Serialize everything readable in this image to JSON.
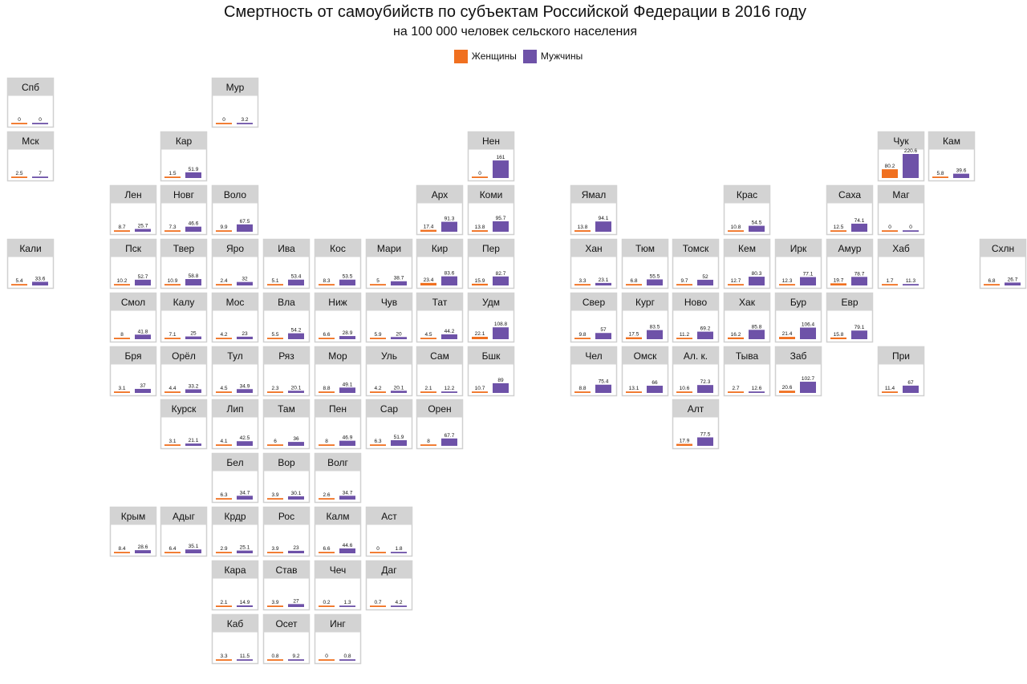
{
  "title": "Смертность от самоубийств по субъектам Российской Федерации в 2016 году",
  "subtitle": "на 100 000 человек сельского населения",
  "legend": [
    {
      "label": "Женщины",
      "color": "#f07020"
    },
    {
      "label": "Мужчины",
      "color": "#6e52a8"
    }
  ],
  "chart_data": {
    "type": "bar",
    "series": [
      {
        "name": "Женщины",
        "color": "#f07020"
      },
      {
        "name": "Мужчины",
        "color": "#6e52a8"
      }
    ],
    "ylim": [
      0,
      220.6
    ],
    "regions": [
      {
        "name": "Спб",
        "col": 0,
        "row": 0,
        "women": 0,
        "men": 0
      },
      {
        "name": "Мур",
        "col": 4,
        "row": 0,
        "women": 0,
        "men": 3.2
      },
      {
        "name": "Мск",
        "col": 0,
        "row": 1,
        "women": 2.5,
        "men": 7
      },
      {
        "name": "Кар",
        "col": 3,
        "row": 1,
        "women": 1.5,
        "men": 51.9
      },
      {
        "name": "Нен",
        "col": 9,
        "row": 1,
        "women": 0,
        "men": 161
      },
      {
        "name": "Чук",
        "col": 17,
        "row": 1,
        "women": 80.2,
        "men": 220.6
      },
      {
        "name": "Кам",
        "col": 18,
        "row": 1,
        "women": 5.8,
        "men": 39.6
      },
      {
        "name": "Лен",
        "col": 2,
        "row": 2,
        "women": 8.7,
        "men": 25.7
      },
      {
        "name": "Новг",
        "col": 3,
        "row": 2,
        "women": 7.3,
        "men": 46.6
      },
      {
        "name": "Воло",
        "col": 4,
        "row": 2,
        "women": 9.9,
        "men": 67.5
      },
      {
        "name": "Арх",
        "col": 8,
        "row": 2,
        "women": 17.4,
        "men": 91.3
      },
      {
        "name": "Коми",
        "col": 9,
        "row": 2,
        "women": 13.8,
        "men": 95.7
      },
      {
        "name": "Ямал",
        "col": 11,
        "row": 2,
        "women": 13.8,
        "men": 94.1
      },
      {
        "name": "Крас",
        "col": 14,
        "row": 2,
        "women": 10.8,
        "men": 54.5
      },
      {
        "name": "Саха",
        "col": 16,
        "row": 2,
        "women": 12.5,
        "men": 74.1
      },
      {
        "name": "Маг",
        "col": 17,
        "row": 2,
        "women": 0,
        "men": 0
      },
      {
        "name": "Кали",
        "col": 0,
        "row": 3,
        "women": 5.4,
        "men": 33.6
      },
      {
        "name": "Пск",
        "col": 2,
        "row": 3,
        "women": 10.2,
        "men": 52.7
      },
      {
        "name": "Твер",
        "col": 3,
        "row": 3,
        "women": 10.9,
        "men": 58.8
      },
      {
        "name": "Яро",
        "col": 4,
        "row": 3,
        "women": 2.4,
        "men": 32
      },
      {
        "name": "Ива",
        "col": 5,
        "row": 3,
        "women": 5.1,
        "men": 53.4
      },
      {
        "name": "Кос",
        "col": 6,
        "row": 3,
        "women": 8.3,
        "men": 53.5
      },
      {
        "name": "Мари",
        "col": 7,
        "row": 3,
        "women": 5,
        "men": 38.7
      },
      {
        "name": "Кир",
        "col": 8,
        "row": 3,
        "women": 23.4,
        "men": 83.6
      },
      {
        "name": "Пер",
        "col": 9,
        "row": 3,
        "women": 15.9,
        "men": 82.7
      },
      {
        "name": "Хан",
        "col": 11,
        "row": 3,
        "women": 3.3,
        "men": 23.1
      },
      {
        "name": "Тюм",
        "col": 12,
        "row": 3,
        "women": 6.8,
        "men": 55.5
      },
      {
        "name": "Томск",
        "col": 13,
        "row": 3,
        "women": 9.7,
        "men": 52
      },
      {
        "name": "Кем",
        "col": 14,
        "row": 3,
        "women": 12.7,
        "men": 80.3
      },
      {
        "name": "Ирк",
        "col": 15,
        "row": 3,
        "women": 12.3,
        "men": 77.1
      },
      {
        "name": "Амур",
        "col": 16,
        "row": 3,
        "women": 19.7,
        "men": 78.7
      },
      {
        "name": "Хаб",
        "col": 17,
        "row": 3,
        "women": 1.7,
        "men": 11.3
      },
      {
        "name": "Схлн",
        "col": 19,
        "row": 3,
        "women": 6.8,
        "men": 26.7
      },
      {
        "name": "Смол",
        "col": 2,
        "row": 4,
        "women": 8,
        "men": 41.8
      },
      {
        "name": "Калу",
        "col": 3,
        "row": 4,
        "women": 7.1,
        "men": 25
      },
      {
        "name": "Мос",
        "col": 4,
        "row": 4,
        "women": 4.2,
        "men": 23
      },
      {
        "name": "Вла",
        "col": 5,
        "row": 4,
        "women": 5.5,
        "men": 54.2
      },
      {
        "name": "Ниж",
        "col": 6,
        "row": 4,
        "women": 6.6,
        "men": 28.9
      },
      {
        "name": "Чув",
        "col": 7,
        "row": 4,
        "women": 5.9,
        "men": 20
      },
      {
        "name": "Тат",
        "col": 8,
        "row": 4,
        "women": 4.5,
        "men": 44.2
      },
      {
        "name": "Удм",
        "col": 9,
        "row": 4,
        "women": 22.1,
        "men": 108.8
      },
      {
        "name": "Свер",
        "col": 11,
        "row": 4,
        "women": 9.8,
        "men": 57
      },
      {
        "name": "Кург",
        "col": 12,
        "row": 4,
        "women": 17.5,
        "men": 83.5
      },
      {
        "name": "Ново",
        "col": 13,
        "row": 4,
        "women": 11.2,
        "men": 69.2
      },
      {
        "name": "Хак",
        "col": 14,
        "row": 4,
        "women": 16.2,
        "men": 85.8
      },
      {
        "name": "Бур",
        "col": 15,
        "row": 4,
        "women": 21.4,
        "men": 106.4
      },
      {
        "name": "Евр",
        "col": 16,
        "row": 4,
        "women": 15.8,
        "men": 79.1
      },
      {
        "name": "Бря",
        "col": 2,
        "row": 5,
        "women": 3.1,
        "men": 37
      },
      {
        "name": "Орёл",
        "col": 3,
        "row": 5,
        "women": 4.4,
        "men": 33.2
      },
      {
        "name": "Тул",
        "col": 4,
        "row": 5,
        "women": 4.5,
        "men": 34.9
      },
      {
        "name": "Ряз",
        "col": 5,
        "row": 5,
        "women": 2.3,
        "men": 20.1
      },
      {
        "name": "Мор",
        "col": 6,
        "row": 5,
        "women": 8.8,
        "men": 49.1
      },
      {
        "name": "Уль",
        "col": 7,
        "row": 5,
        "women": 4.2,
        "men": 20.1
      },
      {
        "name": "Сам",
        "col": 8,
        "row": 5,
        "women": 2.1,
        "men": 12.2
      },
      {
        "name": "Бшк",
        "col": 9,
        "row": 5,
        "women": 10.7,
        "men": 89
      },
      {
        "name": "Чел",
        "col": 11,
        "row": 5,
        "women": 8.8,
        "men": 75.4
      },
      {
        "name": "Омск",
        "col": 12,
        "row": 5,
        "women": 13.1,
        "men": 66
      },
      {
        "name": "Ал. к.",
        "col": 13,
        "row": 5,
        "women": 10.6,
        "men": 72.3
      },
      {
        "name": "Тыва",
        "col": 14,
        "row": 5,
        "women": 2.7,
        "men": 12.6
      },
      {
        "name": "Заб",
        "col": 15,
        "row": 5,
        "women": 20.6,
        "men": 102.7
      },
      {
        "name": "При",
        "col": 17,
        "row": 5,
        "women": 11.4,
        "men": 67
      },
      {
        "name": "Курск",
        "col": 3,
        "row": 6,
        "women": 3.1,
        "men": 21.1
      },
      {
        "name": "Лип",
        "col": 4,
        "row": 6,
        "women": 4.1,
        "men": 42.5
      },
      {
        "name": "Там",
        "col": 5,
        "row": 6,
        "women": 6,
        "men": 36
      },
      {
        "name": "Пен",
        "col": 6,
        "row": 6,
        "women": 8,
        "men": 46.9
      },
      {
        "name": "Сар",
        "col": 7,
        "row": 6,
        "women": 6.3,
        "men": 51.9
      },
      {
        "name": "Орен",
        "col": 8,
        "row": 6,
        "women": 8,
        "men": 67.7
      },
      {
        "name": "Алт",
        "col": 13,
        "row": 6,
        "women": 17.9,
        "men": 77.5
      },
      {
        "name": "Бел",
        "col": 4,
        "row": 7,
        "women": 6.3,
        "men": 34.7
      },
      {
        "name": "Вор",
        "col": 5,
        "row": 7,
        "women": 3.9,
        "men": 30.1
      },
      {
        "name": "Волг",
        "col": 6,
        "row": 7,
        "women": 2.6,
        "men": 34.7
      },
      {
        "name": "Крым",
        "col": 2,
        "row": 8,
        "women": 8.4,
        "men": 28.6
      },
      {
        "name": "Адыг",
        "col": 3,
        "row": 8,
        "women": 6.4,
        "men": 35.1
      },
      {
        "name": "Крдр",
        "col": 4,
        "row": 8,
        "women": 2.9,
        "men": 25.1
      },
      {
        "name": "Рос",
        "col": 5,
        "row": 8,
        "women": 3.9,
        "men": 23
      },
      {
        "name": "Калм",
        "col": 6,
        "row": 8,
        "women": 6.6,
        "men": 44.6
      },
      {
        "name": "Аст",
        "col": 7,
        "row": 8,
        "women": 0,
        "men": 1.8
      },
      {
        "name": "Кара",
        "col": 4,
        "row": 9,
        "women": 2.1,
        "men": 14.9
      },
      {
        "name": "Став",
        "col": 5,
        "row": 9,
        "women": 3.9,
        "men": 27
      },
      {
        "name": "Чеч",
        "col": 6,
        "row": 9,
        "women": 0.2,
        "men": 1.3
      },
      {
        "name": "Даг",
        "col": 7,
        "row": 9,
        "women": 0.7,
        "men": 4.2
      },
      {
        "name": "Каб",
        "col": 4,
        "row": 10,
        "women": 3.3,
        "men": 11.5
      },
      {
        "name": "Осет",
        "col": 5,
        "row": 10,
        "women": 0.8,
        "men": 9.2
      },
      {
        "name": "Инг",
        "col": 6,
        "row": 10,
        "women": 0,
        "men": 0.8
      }
    ]
  }
}
